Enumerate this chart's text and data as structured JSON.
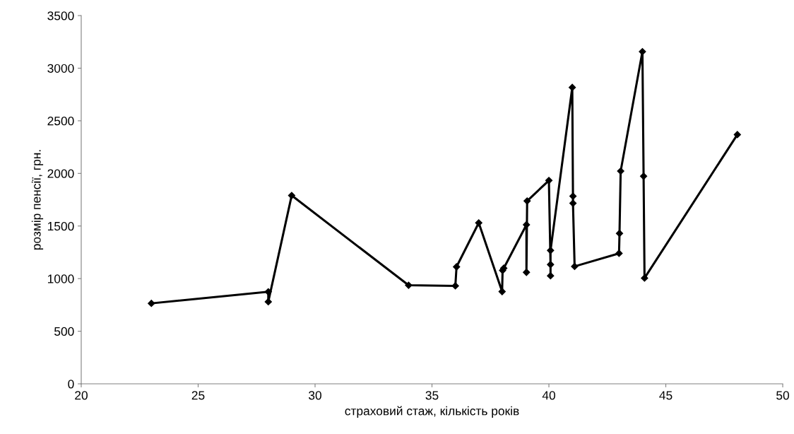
{
  "chart_data": {
    "type": "line",
    "xlabel": "страховий стаж, кількість років",
    "ylabel": "розмір пенсії, грн.",
    "x": [
      23,
      28.0,
      28.0,
      29,
      34,
      36,
      36.05,
      37,
      38,
      38.02,
      38.07,
      39.04,
      39.04,
      39.07,
      40.0,
      40.07,
      40.07,
      40.07,
      41.0,
      41.03,
      41.03,
      41.1,
      43,
      43.02,
      43.07,
      44,
      44.05,
      44.09,
      48.06
    ],
    "series": [
      {
        "color": "#000000",
        "values": [
          765,
          875,
          780,
          1790,
          937,
          931,
          1112,
          1530,
          877,
          1078,
          1099,
          1512,
          1060,
          1738,
          1933,
          1134,
          1027,
          1268,
          2817,
          1783,
          1716,
          1116,
          1240,
          1430,
          2022,
          3157,
          1973,
          1005,
          2369
        ]
      }
    ],
    "xlim": [
      20,
      50
    ],
    "xticks": [
      20,
      25,
      30,
      35,
      40,
      45,
      50
    ],
    "ylim": [
      0,
      3500
    ],
    "yticks": [
      0,
      500,
      1000,
      1500,
      2000,
      2500,
      3000,
      3500
    ],
    "grid": false,
    "legend": false,
    "marker": "diamond",
    "line_style": "solid"
  }
}
